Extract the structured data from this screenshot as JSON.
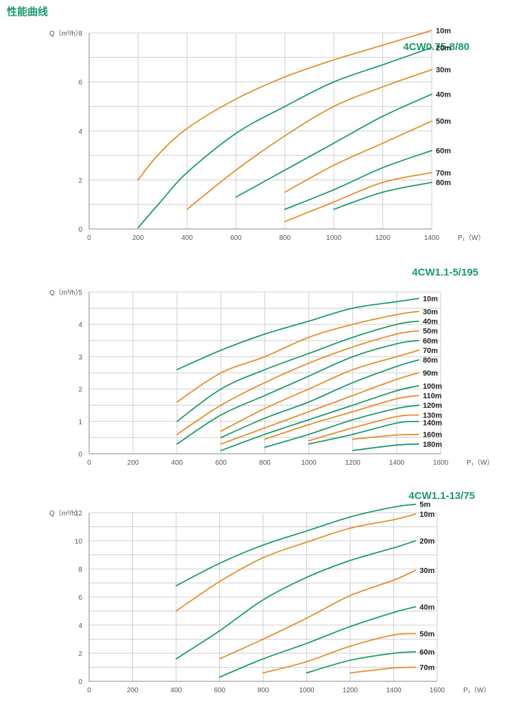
{
  "page_title": "性能曲线",
  "colors": {
    "green": "#1a9a6b",
    "orange": "#e58c26",
    "grid": "#cfcfcf",
    "axis": "#888888"
  },
  "chart_data": [
    {
      "type": "line",
      "title": "4CW0.75-8/80",
      "ylabel": "Q（m³/h）",
      "xlabel": "P₁（W）",
      "xlim": [
        0,
        1400
      ],
      "ylim": [
        0,
        8
      ],
      "xticks": [
        0,
        200,
        400,
        600,
        800,
        1000,
        1200,
        1400
      ],
      "yticks": [
        0,
        2,
        4,
        6,
        8
      ],
      "grid": true,
      "series": [
        {
          "name": "10m",
          "color": "orange",
          "points": [
            [
              200,
              2.0
            ],
            [
              280,
              3.0
            ],
            [
              400,
              4.1
            ],
            [
              600,
              5.3
            ],
            [
              800,
              6.2
            ],
            [
              1000,
              6.9
            ],
            [
              1200,
              7.5
            ],
            [
              1400,
              8.1
            ]
          ]
        },
        {
          "name": "20m",
          "color": "green",
          "points": [
            [
              200,
              0.05
            ],
            [
              300,
              1.2
            ],
            [
              400,
              2.3
            ],
            [
              600,
              3.9
            ],
            [
              800,
              5.0
            ],
            [
              1000,
              6.0
            ],
            [
              1200,
              6.7
            ],
            [
              1400,
              7.4
            ]
          ]
        },
        {
          "name": "30m",
          "color": "orange",
          "points": [
            [
              400,
              0.8
            ],
            [
              600,
              2.4
            ],
            [
              800,
              3.8
            ],
            [
              1000,
              5.0
            ],
            [
              1200,
              5.8
            ],
            [
              1400,
              6.5
            ]
          ]
        },
        {
          "name": "40m",
          "color": "green",
          "points": [
            [
              600,
              1.3
            ],
            [
              800,
              2.4
            ],
            [
              1000,
              3.5
            ],
            [
              1200,
              4.6
            ],
            [
              1400,
              5.5
            ]
          ]
        },
        {
          "name": "50m",
          "color": "orange",
          "points": [
            [
              800,
              1.5
            ],
            [
              1000,
              2.6
            ],
            [
              1200,
              3.5
            ],
            [
              1400,
              4.4
            ]
          ]
        },
        {
          "name": "60m",
          "color": "green",
          "points": [
            [
              800,
              0.8
            ],
            [
              1000,
              1.6
            ],
            [
              1200,
              2.5
            ],
            [
              1400,
              3.2
            ]
          ]
        },
        {
          "name": "70m",
          "color": "orange",
          "points": [
            [
              800,
              0.3
            ],
            [
              1000,
              1.1
            ],
            [
              1200,
              1.9
            ],
            [
              1400,
              2.3
            ]
          ]
        },
        {
          "name": "80m",
          "color": "green",
          "points": [
            [
              1000,
              0.8
            ],
            [
              1200,
              1.5
            ],
            [
              1400,
              1.9
            ]
          ]
        }
      ]
    },
    {
      "type": "line",
      "title": "4CW1.1-5/195",
      "ylabel": "Q（m³/h）",
      "xlabel": "P₁（W）",
      "xlim": [
        0,
        1600
      ],
      "ylim": [
        0,
        5
      ],
      "xticks": [
        0,
        200,
        400,
        600,
        800,
        1000,
        1200,
        1400,
        1600
      ],
      "yticks": [
        0,
        1,
        2,
        3,
        4,
        5
      ],
      "grid": true,
      "series": [
        {
          "name": "10m",
          "color": "green",
          "points": [
            [
              400,
              2.6
            ],
            [
              600,
              3.2
            ],
            [
              800,
              3.7
            ],
            [
              1000,
              4.1
            ],
            [
              1200,
              4.5
            ],
            [
              1400,
              4.7
            ],
            [
              1500,
              4.8
            ]
          ]
        },
        {
          "name": "30m",
          "color": "orange",
          "points": [
            [
              400,
              1.6
            ],
            [
              600,
              2.5
            ],
            [
              800,
              3.0
            ],
            [
              1000,
              3.6
            ],
            [
              1200,
              4.0
            ],
            [
              1400,
              4.3
            ],
            [
              1500,
              4.4
            ]
          ]
        },
        {
          "name": "40m",
          "color": "green",
          "points": [
            [
              400,
              1.0
            ],
            [
              600,
              2.0
            ],
            [
              800,
              2.6
            ],
            [
              1000,
              3.1
            ],
            [
              1200,
              3.6
            ],
            [
              1400,
              4.0
            ],
            [
              1500,
              4.1
            ]
          ]
        },
        {
          "name": "50m",
          "color": "orange",
          "points": [
            [
              400,
              0.6
            ],
            [
              600,
              1.5
            ],
            [
              800,
              2.2
            ],
            [
              1000,
              2.8
            ],
            [
              1200,
              3.3
            ],
            [
              1400,
              3.7
            ],
            [
              1500,
              3.8
            ]
          ]
        },
        {
          "name": "60m",
          "color": "green",
          "points": [
            [
              400,
              0.3
            ],
            [
              600,
              1.2
            ],
            [
              800,
              1.8
            ],
            [
              1000,
              2.4
            ],
            [
              1200,
              3.0
            ],
            [
              1400,
              3.4
            ],
            [
              1500,
              3.5
            ]
          ]
        },
        {
          "name": "70m",
          "color": "orange",
          "points": [
            [
              600,
              0.7
            ],
            [
              800,
              1.4
            ],
            [
              1000,
              2.0
            ],
            [
              1200,
              2.6
            ],
            [
              1400,
              3.0
            ],
            [
              1500,
              3.2
            ]
          ]
        },
        {
          "name": "80m",
          "color": "green",
          "points": [
            [
              600,
              0.5
            ],
            [
              800,
              1.1
            ],
            [
              1000,
              1.6
            ],
            [
              1200,
              2.2
            ],
            [
              1400,
              2.7
            ],
            [
              1500,
              2.9
            ]
          ]
        },
        {
          "name": "90m",
          "color": "orange",
          "points": [
            [
              600,
              0.3
            ],
            [
              800,
              0.8
            ],
            [
              1000,
              1.3
            ],
            [
              1200,
              1.8
            ],
            [
              1400,
              2.3
            ],
            [
              1500,
              2.5
            ]
          ]
        },
        {
          "name": "100m",
          "color": "green",
          "points": [
            [
              600,
              0.1
            ],
            [
              800,
              0.6
            ],
            [
              1000,
              1.05
            ],
            [
              1200,
              1.5
            ],
            [
              1400,
              1.95
            ],
            [
              1500,
              2.1
            ]
          ]
        },
        {
          "name": "110m",
          "color": "orange",
          "points": [
            [
              800,
              0.45
            ],
            [
              1000,
              0.9
            ],
            [
              1200,
              1.3
            ],
            [
              1400,
              1.7
            ],
            [
              1500,
              1.8
            ]
          ]
        },
        {
          "name": "120m",
          "color": "green",
          "points": [
            [
              800,
              0.2
            ],
            [
              1000,
              0.6
            ],
            [
              1200,
              1.05
            ],
            [
              1400,
              1.4
            ],
            [
              1500,
              1.5
            ]
          ]
        },
        {
          "name": "130m",
          "color": "orange",
          "points": [
            [
              1000,
              0.4
            ],
            [
              1200,
              0.8
            ],
            [
              1400,
              1.15
            ],
            [
              1500,
              1.2
            ]
          ]
        },
        {
          "name": "140m",
          "color": "green",
          "points": [
            [
              1000,
              0.3
            ],
            [
              1200,
              0.6
            ],
            [
              1400,
              0.95
            ],
            [
              1500,
              1.0
            ]
          ]
        },
        {
          "name": "160m",
          "color": "orange",
          "points": [
            [
              1200,
              0.45
            ],
            [
              1400,
              0.58
            ],
            [
              1500,
              0.6
            ]
          ]
        },
        {
          "name": "180m",
          "color": "green",
          "points": [
            [
              1200,
              0.1
            ],
            [
              1400,
              0.27
            ],
            [
              1500,
              0.3
            ]
          ]
        }
      ]
    },
    {
      "type": "line",
      "title": "4CW1.1-13/75",
      "ylabel": "Q（m³/h）",
      "xlabel": "P₁（W）",
      "xlim": [
        0,
        1600
      ],
      "ylim": [
        0,
        12
      ],
      "xticks": [
        0,
        200,
        400,
        600,
        800,
        1000,
        1200,
        1400,
        1600
      ],
      "yticks": [
        0,
        2,
        4,
        6,
        8,
        10,
        12
      ],
      "grid": true,
      "series": [
        {
          "name": "5m",
          "color": "green",
          "points": [
            [
              400,
              6.8
            ],
            [
              600,
              8.4
            ],
            [
              800,
              9.7
            ],
            [
              1000,
              10.7
            ],
            [
              1200,
              11.7
            ],
            [
              1400,
              12.4
            ],
            [
              1500,
              12.6
            ]
          ]
        },
        {
          "name": "10m",
          "color": "orange",
          "points": [
            [
              400,
              5.0
            ],
            [
              600,
              7.1
            ],
            [
              800,
              8.8
            ],
            [
              1000,
              9.9
            ],
            [
              1200,
              10.9
            ],
            [
              1400,
              11.5
            ],
            [
              1500,
              11.9
            ]
          ]
        },
        {
          "name": "20m",
          "color": "green",
          "points": [
            [
              400,
              1.6
            ],
            [
              600,
              3.6
            ],
            [
              800,
              5.8
            ],
            [
              1000,
              7.4
            ],
            [
              1200,
              8.6
            ],
            [
              1400,
              9.5
            ],
            [
              1500,
              10.0
            ]
          ]
        },
        {
          "name": "30m",
          "color": "orange",
          "points": [
            [
              600,
              1.6
            ],
            [
              800,
              3.0
            ],
            [
              1000,
              4.5
            ],
            [
              1200,
              6.1
            ],
            [
              1400,
              7.2
            ],
            [
              1500,
              7.9
            ]
          ]
        },
        {
          "name": "40m",
          "color": "green",
          "points": [
            [
              600,
              0.3
            ],
            [
              800,
              1.6
            ],
            [
              1000,
              2.7
            ],
            [
              1200,
              3.9
            ],
            [
              1400,
              4.9
            ],
            [
              1500,
              5.3
            ]
          ]
        },
        {
          "name": "50m",
          "color": "orange",
          "points": [
            [
              800,
              0.6
            ],
            [
              1000,
              1.4
            ],
            [
              1200,
              2.5
            ],
            [
              1400,
              3.3
            ],
            [
              1500,
              3.4
            ]
          ]
        },
        {
          "name": "60m",
          "color": "green",
          "points": [
            [
              1000,
              0.6
            ],
            [
              1200,
              1.5
            ],
            [
              1400,
              2.0
            ],
            [
              1500,
              2.1
            ]
          ]
        },
        {
          "name": "70m",
          "color": "orange",
          "points": [
            [
              1200,
              0.6
            ],
            [
              1400,
              0.95
            ],
            [
              1500,
              1.0
            ]
          ]
        }
      ]
    }
  ]
}
